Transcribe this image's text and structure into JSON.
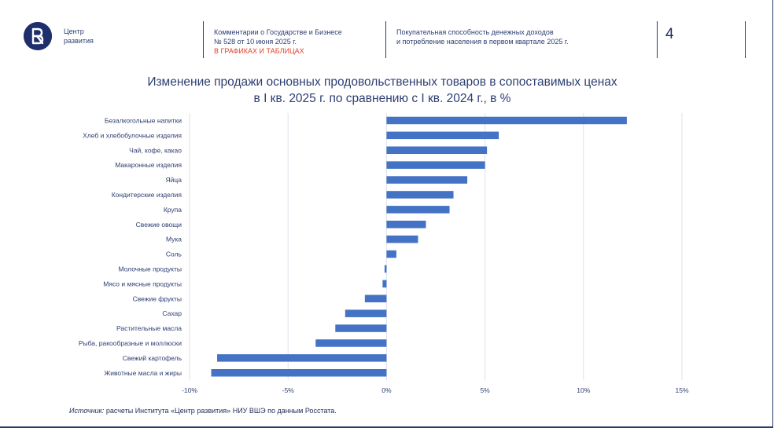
{
  "header": {
    "org_line1": "Центр",
    "org_line2": "развития",
    "series_line1": "Комментарии о Государстве и Бизнесе",
    "series_line2": "№ 528 от 10 июня 2025 г.",
    "series_line3": "В ГРАФИКАХ И ТАБЛИЦАХ",
    "topic_line1": "Покупательная способность денежных доходов",
    "topic_line2": "и потребление населения в первом квартале 2025 г.",
    "page_number": "4"
  },
  "colors": {
    "bar": "#4472c4",
    "accent_red": "#e0452b",
    "navy": "#1e2f6b"
  },
  "chart_data": {
    "type": "bar",
    "orientation": "horizontal",
    "title_line1": "Изменение продажи основных продовольственных товаров в сопоставимых ценах",
    "title_line2": "в I кв. 2025 г. по сравнению с I кв. 2024 г., в %",
    "categories": [
      "Безалкогольные напитки",
      "Хлеб и хлебобулочные изделия",
      "Чай, кофе, какао",
      "Макаронные изделия",
      "Яйца",
      "Кондитерские изделия",
      "Крупа",
      "Свежие овощи",
      "Мука",
      "Соль",
      "Молочные продукты",
      "Мясо и мясные продукты",
      "Свежие фрукты",
      "Сахар",
      "Растительные масла",
      "Рыба, ракообразные и моллюски",
      "Свежий картофель",
      "Животные масла и жиры"
    ],
    "values": [
      12.2,
      5.7,
      5.1,
      5.0,
      4.1,
      3.4,
      3.2,
      2.0,
      1.6,
      0.5,
      -0.1,
      -0.2,
      -1.1,
      -2.1,
      -2.6,
      -3.6,
      -8.6,
      -8.9
    ],
    "xlim": [
      -10,
      15
    ],
    "xticks": [
      -10,
      -5,
      0,
      5,
      10,
      15
    ],
    "xtick_labels": [
      "-10%",
      "-5%",
      "0%",
      "5%",
      "10%",
      "15%"
    ],
    "grid": true,
    "legend": "none"
  },
  "source": {
    "label": "Источник:",
    "text": " расчеты Института «Центр развития» НИУ ВШЭ по данным Росстата."
  }
}
